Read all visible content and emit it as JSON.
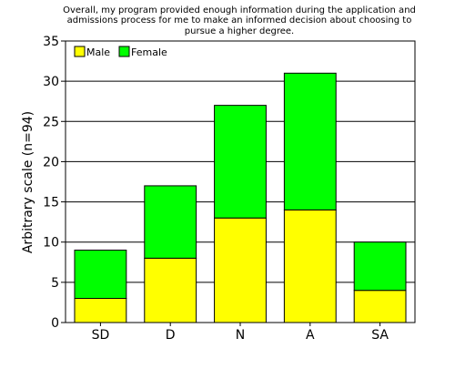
{
  "chart_data": {
    "type": "bar",
    "stacked": true,
    "title_lines": [
      "Overall, my program provided enough information during the application and",
      "admissions process for me to make an informed decision about choosing to",
      "pursue a higher degree."
    ],
    "xlabel": "",
    "ylabel": "Arbitrary scale (n=94)",
    "ylim": [
      0,
      35
    ],
    "yticks": [
      0,
      5,
      10,
      15,
      20,
      25,
      30,
      35
    ],
    "grid": true,
    "legend_position": "top-left",
    "categories": [
      "SD",
      "D",
      "N",
      "A",
      "SA"
    ],
    "series": [
      {
        "name": "Male",
        "color": "#ffff00",
        "values": [
          3,
          8,
          13,
          14,
          4
        ]
      },
      {
        "name": "Female",
        "color": "#00ff00",
        "values": [
          6,
          9,
          14,
          17,
          6
        ]
      }
    ]
  }
}
